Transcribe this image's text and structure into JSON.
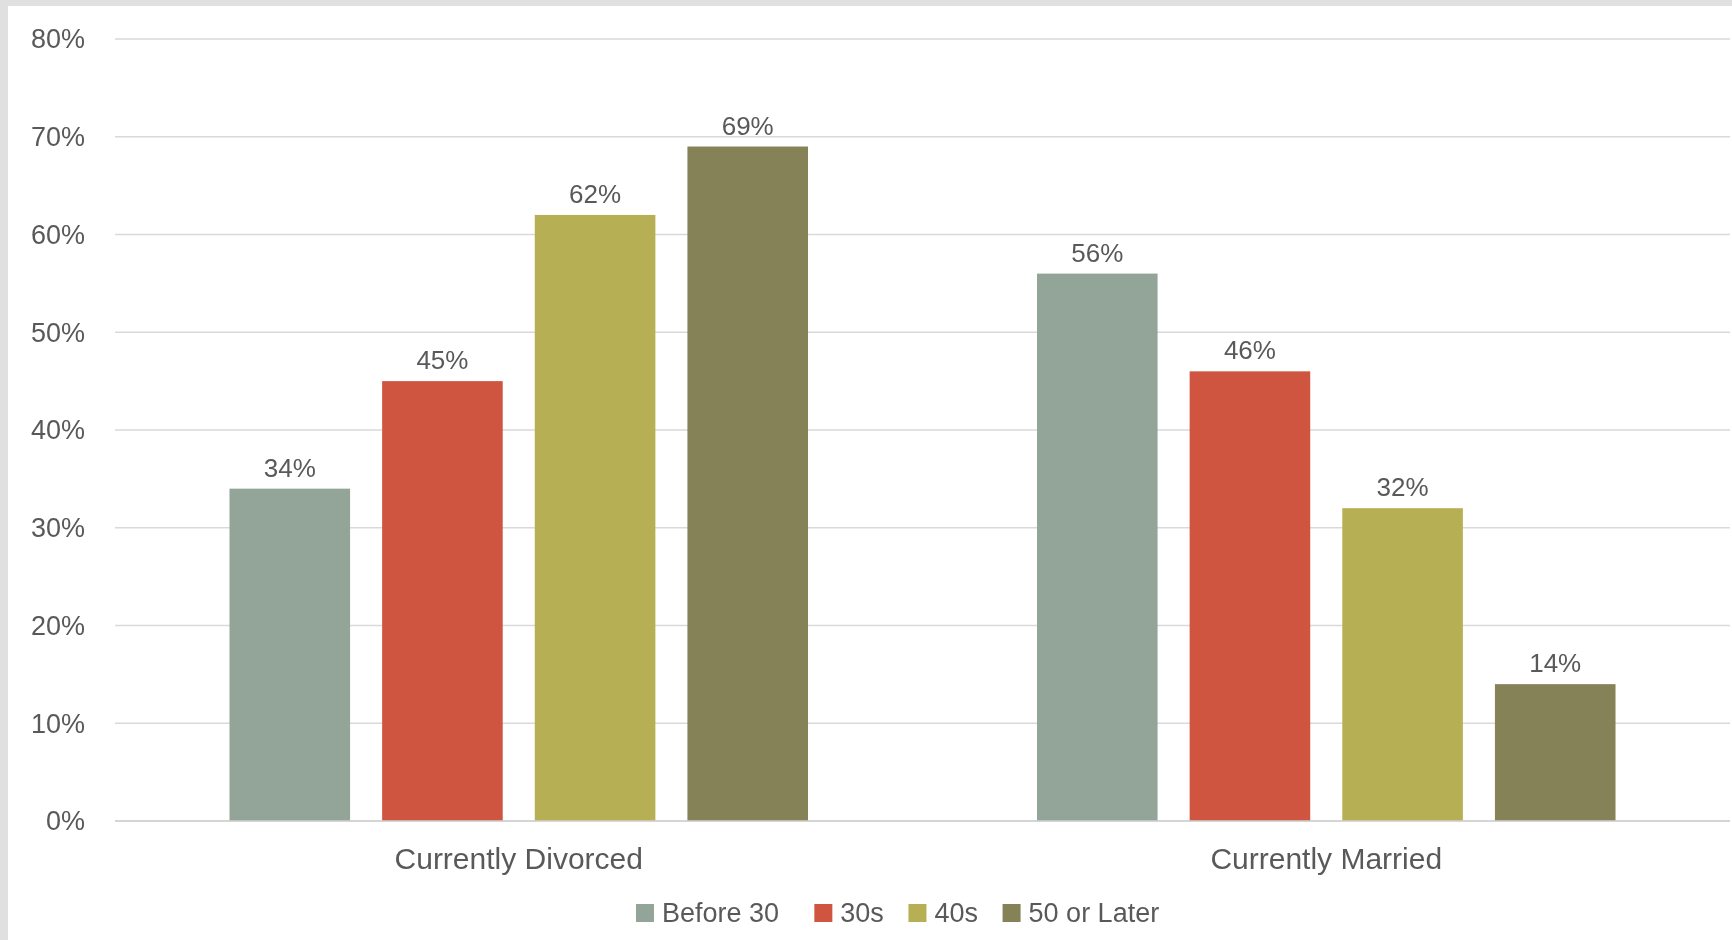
{
  "chart_data": {
    "type": "bar",
    "categories": [
      "Currently Divorced",
      "Currently Married"
    ],
    "series": [
      {
        "name": "Before 30",
        "color": "#93a499",
        "values": [
          34,
          56
        ],
        "value_labels": [
          "34%",
          "56%"
        ]
      },
      {
        "name": "30s",
        "color": "#d05540",
        "values": [
          45,
          46
        ],
        "value_labels": [
          "45%",
          "46%"
        ]
      },
      {
        "name": "40s",
        "color": "#b6af53",
        "values": [
          62,
          32
        ],
        "value_labels": [
          "62%",
          "32%"
        ]
      },
      {
        "name": "50 or Later",
        "color": "#858257",
        "values": [
          69,
          14
        ],
        "value_labels": [
          "69%",
          "14%"
        ]
      }
    ],
    "ylim": [
      0,
      80
    ],
    "yticks": [
      {
        "value": 0,
        "label": "0%"
      },
      {
        "value": 10,
        "label": "10%"
      },
      {
        "value": 20,
        "label": "20%"
      },
      {
        "value": 30,
        "label": "30%"
      },
      {
        "value": 40,
        "label": "40%"
      },
      {
        "value": 50,
        "label": "50%"
      },
      {
        "value": 60,
        "label": "60%"
      },
      {
        "value": 70,
        "label": "70%"
      },
      {
        "value": 80,
        "label": "80%"
      }
    ],
    "grid": "y",
    "legend": "bottom"
  }
}
